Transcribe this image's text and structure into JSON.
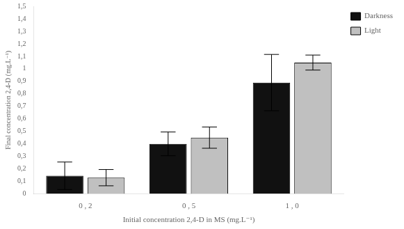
{
  "chart_data": {
    "type": "bar",
    "categories": [
      "0 , 2",
      "0 , 5",
      "1 , 0"
    ],
    "series": [
      {
        "name": "Darkne­ss",
        "color": "#111111",
        "values": [
          0.145,
          0.4,
          0.89
        ],
        "errors": [
          0.11,
          0.095,
          0.225
        ]
      },
      {
        "name": "Light",
        "color": "#c0c0c0",
        "values": [
          0.13,
          0.45,
          1.05
        ],
        "errors": [
          0.065,
          0.085,
          0.06
        ]
      }
    ],
    "xlabel": "Initial concentration 2,4-D in MS (mg.L⁻¹)",
    "ylabel": "Final concentration 2,4-D (mg.L⁻¹)",
    "ylim": [
      0,
      1.5
    ],
    "yticks": [
      0,
      {
        "value": 0.1,
        "label": "0,1"
      },
      {
        "value": 0.2,
        "label": "0,2"
      },
      {
        "value": 0.3,
        "label": "0,3"
      },
      {
        "value": 0.4,
        "label": "0,4"
      },
      {
        "value": 0.5,
        "label": "0,5"
      },
      {
        "value": 0.6,
        "label": "0,6"
      },
      {
        "value": 0.7,
        "label": "0,7"
      },
      {
        "value": 0.8,
        "label": "0,8"
      },
      {
        "value": 0.9,
        "label": "0,9"
      },
      1,
      {
        "value": 1.1,
        "label": "1,1"
      },
      {
        "value": 1.2,
        "label": "1,2"
      },
      {
        "value": 1.3,
        "label": "1,3"
      },
      {
        "value": 1.4,
        "label": "1,4"
      },
      {
        "value": 1.5,
        "label": "1,5"
      }
    ],
    "grid": false,
    "legend": "right"
  }
}
